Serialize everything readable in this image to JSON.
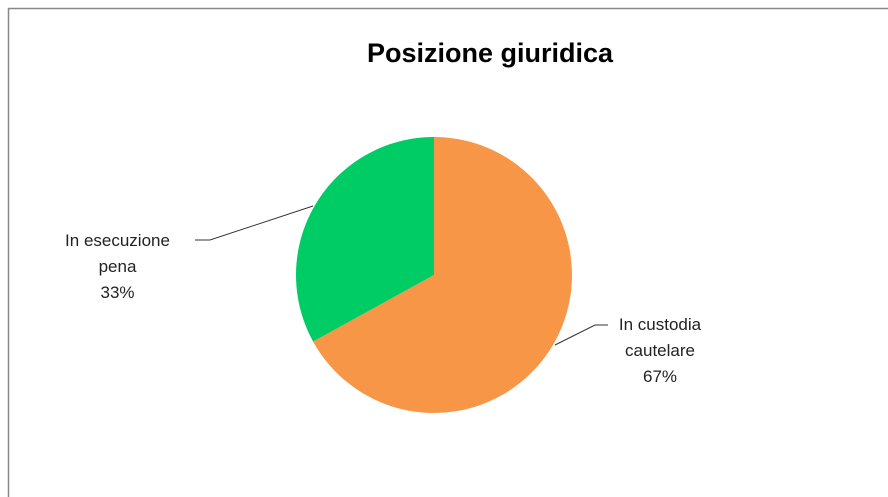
{
  "chart_data": {
    "type": "pie",
    "title": "Posizione giuridica",
    "categories": [
      "In custodia cautelare",
      "In esecuzione pena"
    ],
    "values": [
      67,
      33
    ],
    "value_labels": [
      "67%",
      "33%"
    ],
    "colors": [
      "#f79646",
      "#00cc66"
    ]
  }
}
